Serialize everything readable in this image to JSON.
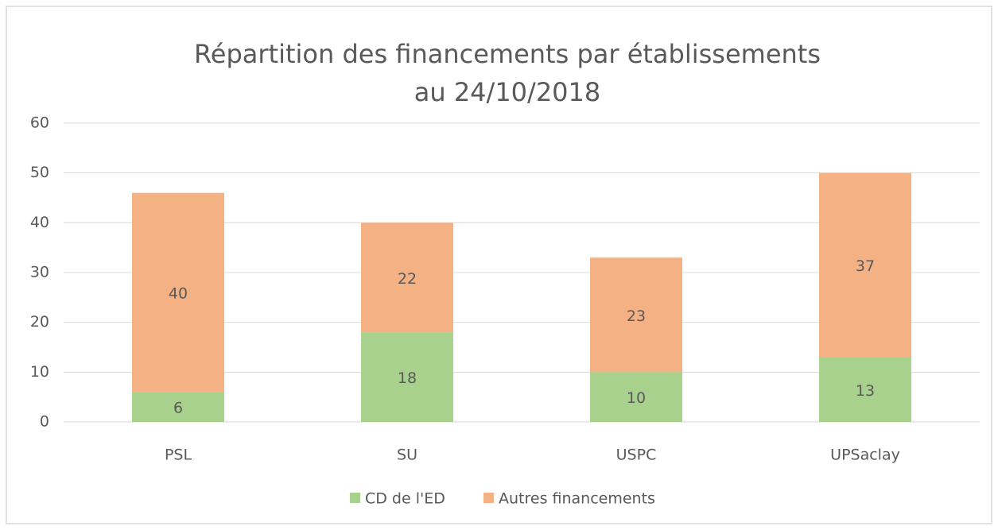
{
  "chart_data": {
    "type": "stacked_bar",
    "title": [
      "Répartition des financements par établissements",
      "au 24/10/2018"
    ],
    "categories": [
      "PSL",
      "SU",
      "USPC",
      "UPSaclay"
    ],
    "series": [
      {
        "name": "CD de l'ED",
        "color": "#a9d18e",
        "values": [
          6,
          18,
          10,
          13
        ]
      },
      {
        "name": "Autres financements",
        "color": "#f4b183",
        "values": [
          40,
          22,
          23,
          37
        ]
      }
    ],
    "ylim": [
      0,
      60
    ],
    "yticks": [
      0,
      10,
      20,
      30,
      40,
      50,
      60
    ],
    "grid": true,
    "legend": "bottom"
  }
}
